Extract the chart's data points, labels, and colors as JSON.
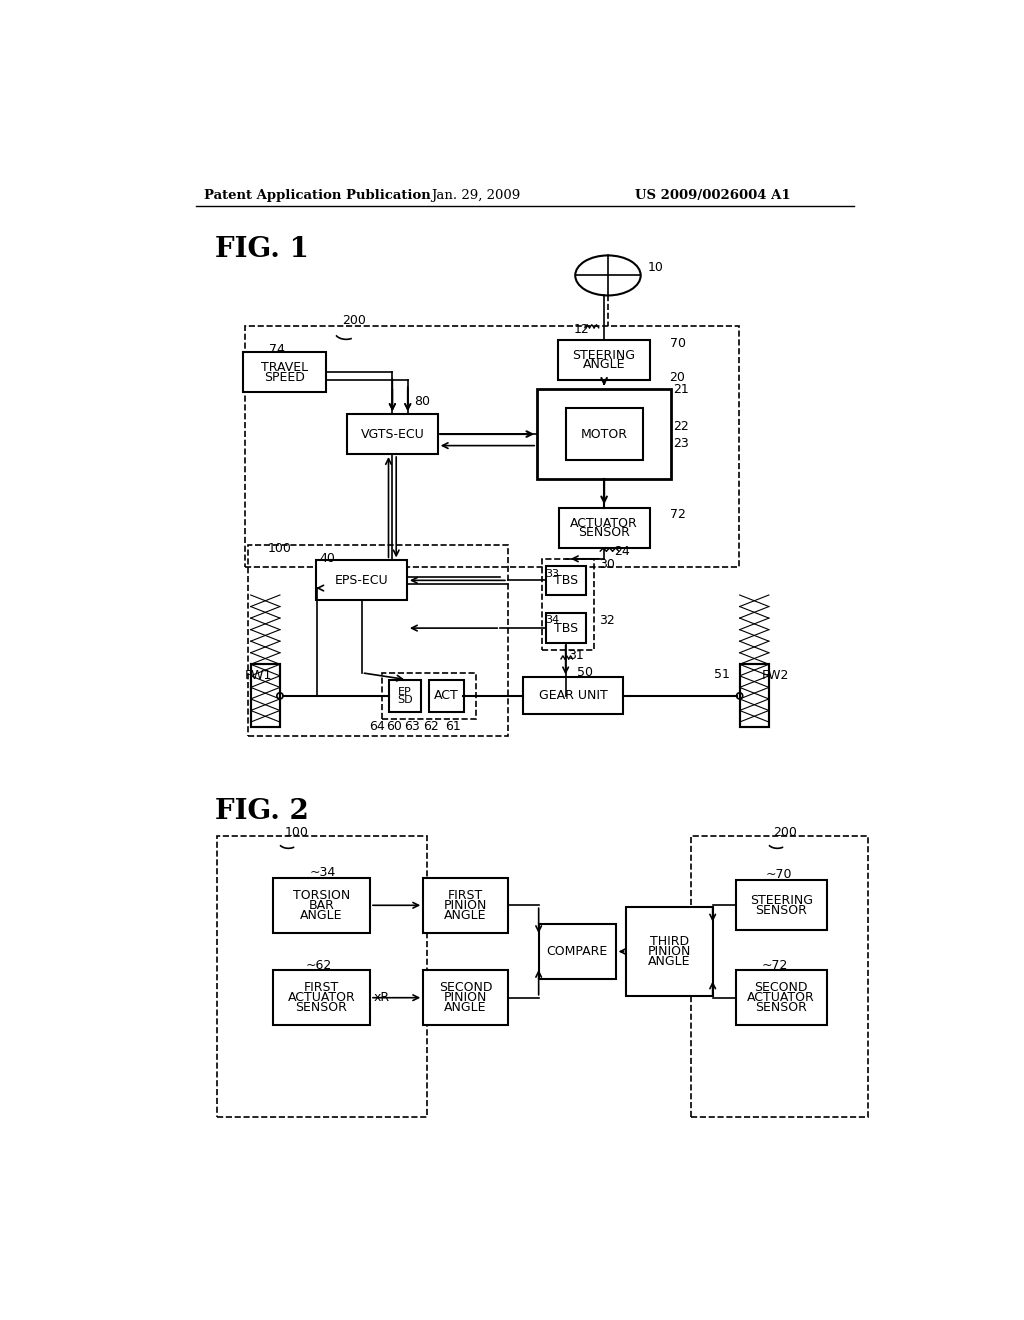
{
  "bg_color": "#ffffff",
  "header_left": "Patent Application Publication",
  "header_mid": "Jan. 29, 2009",
  "header_right": "US 2009/0026004 A1",
  "fig1_label": "FIG. 1",
  "fig2_label": "FIG. 2"
}
